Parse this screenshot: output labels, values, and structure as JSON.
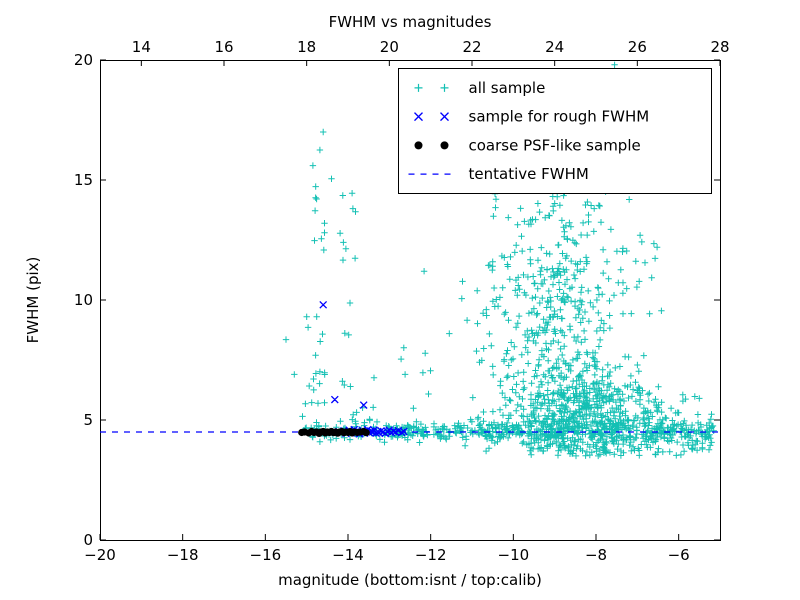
{
  "chart_data": {
    "type": "scatter",
    "title": "FWHM vs magnitudes",
    "xlabel": "magnitude (bottom:isnt / top:calib)",
    "ylabel": "FWHM (pix)",
    "xlim": [
      -20,
      -5
    ],
    "ylim": [
      0,
      20
    ],
    "x_ticks": [
      -20,
      -18,
      -16,
      -14,
      -12,
      -10,
      -8,
      -6
    ],
    "y_ticks": [
      0,
      5,
      10,
      15,
      20
    ],
    "top_axis": {
      "lim": [
        13,
        28
      ],
      "ticks": [
        14,
        16,
        18,
        20,
        22,
        24,
        26,
        28
      ]
    },
    "tentative_fwhm": 4.5,
    "colors": {
      "all_sample": "#14c0b4",
      "rough_fwhm": "#0000ff",
      "psf_like": "#000000",
      "line": "#0000ff"
    },
    "legend": [
      {
        "label": "all sample",
        "marker": "plus",
        "color": "#14c0b4"
      },
      {
        "label": "sample for rough FWHM",
        "marker": "x",
        "color": "#0000ff"
      },
      {
        "label": "coarse PSF-like sample",
        "marker": "dot",
        "color": "#000000"
      },
      {
        "label": "tentative FWHM",
        "marker": "dashed-line",
        "color": "#0000ff"
      }
    ],
    "series": {
      "all_sample": {
        "marker": "plus",
        "color": "#14c0b4",
        "seed": 42,
        "clusters": [
          {
            "n": 430,
            "x": {
              "d": "u",
              "a": -15.05,
              "b": -5.15
            },
            "y": {
              "d": "n",
              "m": 4.55,
              "s": 0.2,
              "min": 3.8,
              "max": 5.4
            }
          },
          {
            "n": 100,
            "x": {
              "d": "u",
              "a": -11.3,
              "b": -5.2
            },
            "y": {
              "d": "n",
              "m": 4.45,
              "s": 0.35,
              "min": 3.4,
              "max": 5.8
            }
          },
          {
            "n": 620,
            "x": {
              "d": "n",
              "m": -8.4,
              "s": 0.95,
              "min": -11.2,
              "max": -5.9
            },
            "y": {
              "d": "n",
              "m": 5.3,
              "s": 1.1,
              "min": 3.5,
              "max": 8.6
            }
          },
          {
            "n": 300,
            "x": {
              "d": "n",
              "m": -8.9,
              "s": 1.0,
              "min": -11.3,
              "max": -6.2
            },
            "y": {
              "d": "n",
              "m": 9.8,
              "s": 1.9,
              "min": 7.0,
              "max": 15.2
            }
          },
          {
            "n": 45,
            "x": {
              "d": "n",
              "m": -9.2,
              "s": 1.1,
              "min": -11.5,
              "max": -7.0
            },
            "y": {
              "d": "u",
              "a": 13.0,
              "b": 15.4
            }
          },
          {
            "n": 26,
            "x": {
              "d": "n",
              "m": -14.75,
              "s": 0.12
            },
            "y": {
              "d": "u",
              "a": 4.9,
              "b": 15.6
            }
          },
          {
            "n": 18,
            "x": {
              "d": "n",
              "m": -13.95,
              "s": 0.14
            },
            "y": {
              "d": "u",
              "a": 4.9,
              "b": 14.4
            }
          },
          {
            "n": 10,
            "x": {
              "d": "u",
              "a": -13.4,
              "b": -12.0
            },
            "y": {
              "d": "u",
              "a": 5.3,
              "b": 8.6
            }
          },
          {
            "n": 55,
            "x": {
              "d": "u",
              "a": -7.0,
              "b": -5.15
            },
            "y": {
              "d": "n",
              "m": 4.7,
              "s": 0.6,
              "min": 3.5,
              "max": 6.6
            }
          },
          {
            "n": 55,
            "x": {
              "d": "u",
              "a": -9.6,
              "b": -5.3
            },
            "y": {
              "d": "u",
              "a": 3.5,
              "b": 4.05
            }
          },
          {
            "n": 25,
            "x": {
              "d": "u",
              "a": -12.9,
              "b": -11.2
            },
            "y": {
              "d": "n",
              "m": 4.5,
              "s": 0.12
            }
          }
        ],
        "outliers": [
          [
            -15.5,
            8.35
          ],
          [
            -15.3,
            6.9
          ],
          [
            -15.1,
            5.15
          ],
          [
            -15.0,
            9.3
          ],
          [
            -14.6,
            17.0
          ],
          [
            -14.68,
            16.25
          ],
          [
            -14.85,
            15.6
          ],
          [
            -14.4,
            15.05
          ],
          [
            -13.9,
            14.45
          ],
          [
            -12.16,
            11.2
          ],
          [
            -11.55,
            8.6
          ],
          [
            -7.55,
            19.8
          ],
          [
            -6.6,
            12.35
          ],
          [
            -5.9,
            6.05
          ],
          [
            -5.5,
            5.9
          ],
          [
            -5.35,
            4.3
          ],
          [
            -5.25,
            4.65
          ]
        ]
      },
      "rough_fwhm": {
        "marker": "x",
        "color": "#0000ff",
        "points": [
          [
            -14.6,
            9.8
          ],
          [
            -14.32,
            5.85
          ],
          [
            -13.62,
            5.62
          ],
          [
            -14.22,
            4.52
          ],
          [
            -14.15,
            4.48
          ],
          [
            -14.1,
            4.55
          ],
          [
            -14.05,
            4.44
          ],
          [
            -14.0,
            4.5
          ],
          [
            -13.97,
            4.58
          ],
          [
            -13.92,
            4.46
          ],
          [
            -13.88,
            4.52
          ],
          [
            -13.85,
            4.6
          ],
          [
            -13.8,
            4.48
          ],
          [
            -13.77,
            4.54
          ],
          [
            -13.72,
            4.42
          ],
          [
            -13.68,
            4.5
          ],
          [
            -13.65,
            4.57
          ],
          [
            -13.6,
            4.45
          ],
          [
            -13.57,
            4.52
          ],
          [
            -13.52,
            4.6
          ],
          [
            -13.48,
            4.47
          ],
          [
            -13.45,
            4.54
          ],
          [
            -13.4,
            4.5
          ],
          [
            -13.37,
            4.58
          ],
          [
            -13.32,
            4.45
          ],
          [
            -13.28,
            4.52
          ],
          [
            -13.25,
            4.48
          ],
          [
            -13.2,
            4.55
          ],
          [
            -13.15,
            4.5
          ],
          [
            -13.1,
            4.44
          ],
          [
            -13.05,
            4.52
          ],
          [
            -13.0,
            4.58
          ],
          [
            -12.95,
            4.47
          ],
          [
            -12.9,
            4.53
          ],
          [
            -12.85,
            4.5
          ],
          [
            -12.78,
            4.56
          ],
          [
            -12.7,
            4.48
          ],
          [
            -12.65,
            4.52
          ]
        ]
      },
      "psf_like": {
        "marker": "dot",
        "color": "#000000",
        "points": [
          [
            -15.12,
            4.48
          ],
          [
            -15.05,
            4.5
          ],
          [
            -14.95,
            4.46
          ],
          [
            -14.88,
            4.52
          ],
          [
            -14.82,
            4.48
          ],
          [
            -14.76,
            4.5
          ],
          [
            -14.7,
            4.44
          ],
          [
            -14.65,
            4.5
          ],
          [
            -14.6,
            4.52
          ],
          [
            -14.55,
            4.46
          ],
          [
            -14.5,
            4.5
          ],
          [
            -14.45,
            4.48
          ],
          [
            -14.4,
            4.52
          ],
          [
            -14.35,
            4.47
          ],
          [
            -14.3,
            4.5
          ],
          [
            -14.25,
            4.45
          ],
          [
            -14.2,
            4.5
          ],
          [
            -14.15,
            4.52
          ],
          [
            -14.1,
            4.47
          ],
          [
            -14.05,
            4.5
          ],
          [
            -14.0,
            4.48
          ],
          [
            -13.95,
            4.52
          ],
          [
            -13.9,
            4.46
          ],
          [
            -13.85,
            4.5
          ],
          [
            -13.78,
            4.48
          ],
          [
            -13.7,
            4.5
          ],
          [
            -13.62,
            4.52
          ],
          [
            -13.56,
            4.47
          ]
        ]
      },
      "tentative": {
        "type": "hline",
        "y": 4.5,
        "color": "#0000ff",
        "dash": "6,6"
      }
    }
  }
}
